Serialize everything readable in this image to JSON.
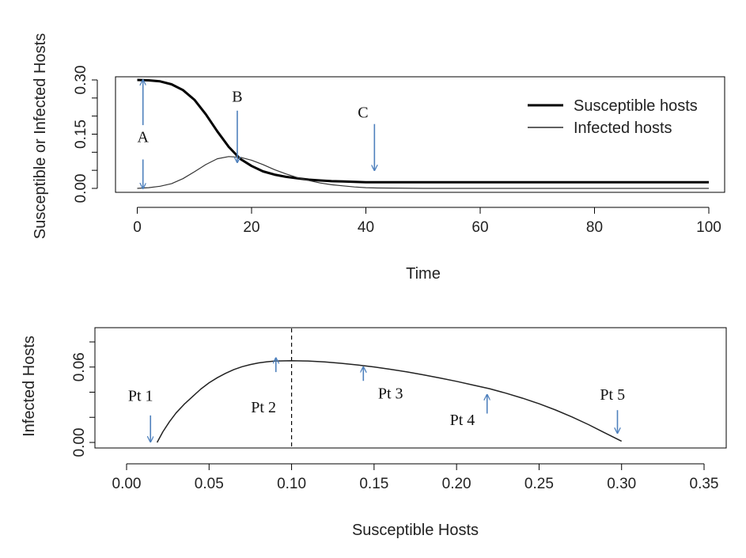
{
  "chart_data": [
    {
      "type": "line",
      "xlabel": "Time",
      "ylabel": "Susceptible or Infected Hosts",
      "xlim": [
        0,
        100
      ],
      "ylim": [
        0,
        0.3
      ],
      "xticks": [
        "0",
        "20",
        "40",
        "60",
        "80",
        "100"
      ],
      "yticks": [
        "0.00",
        "0.15",
        "0.30"
      ],
      "yticks_minor": [
        "0.05",
        "0.10",
        "0.20",
        "0.25"
      ],
      "legend": {
        "placement": "top-right",
        "entries": [
          "Susceptible hosts",
          "Infected hosts"
        ]
      },
      "series": [
        {
          "name": "Susceptible hosts",
          "line": "thick",
          "x": [
            0,
            2,
            4,
            6,
            8,
            10,
            12,
            14,
            16,
            18,
            20,
            22,
            24,
            26,
            28,
            30,
            32,
            34,
            36,
            40,
            50,
            60,
            70,
            80,
            90,
            100
          ],
          "y": [
            0.3,
            0.299,
            0.296,
            0.288,
            0.272,
            0.245,
            0.205,
            0.158,
            0.115,
            0.082,
            0.062,
            0.047,
            0.038,
            0.032,
            0.028,
            0.024,
            0.022,
            0.02,
            0.019,
            0.017,
            0.017,
            0.017,
            0.017,
            0.017,
            0.017,
            0.017
          ]
        },
        {
          "name": "Infected hosts",
          "line": "thin",
          "x": [
            0,
            2,
            4,
            6,
            8,
            10,
            12,
            14,
            16,
            18,
            20,
            22,
            24,
            26,
            28,
            30,
            32,
            34,
            36,
            38,
            40,
            42,
            50,
            60,
            70,
            80,
            90,
            100
          ],
          "y": [
            0.0,
            0.002,
            0.006,
            0.013,
            0.027,
            0.046,
            0.066,
            0.082,
            0.088,
            0.086,
            0.078,
            0.066,
            0.052,
            0.04,
            0.03,
            0.022,
            0.015,
            0.01,
            0.007,
            0.004,
            0.002,
            0.001,
            0.0,
            0.0,
            0.0,
            0.0,
            0.0,
            0.0
          ]
        }
      ],
      "annotations": [
        {
          "label": "A",
          "arrows": [
            {
              "x": 1,
              "from": 0.175,
              "to": 0.3
            },
            {
              "x": 1,
              "from": 0.08,
              "to": 0.0
            }
          ],
          "text_at": [
            1,
            0.128
          ]
        },
        {
          "label": "B",
          "arrows": [
            {
              "x": 17.5,
              "from": 0.215,
              "to": 0.072
            }
          ],
          "text_at": [
            17.5,
            0.24
          ]
        },
        {
          "label": "C",
          "arrows": [
            {
              "x": 41.5,
              "from": 0.178,
              "to": 0.05
            }
          ],
          "text_at": [
            39.5,
            0.196
          ]
        }
      ]
    },
    {
      "type": "line",
      "xlabel": "Susceptible Hosts",
      "ylabel": "Infected Hosts",
      "xlim": [
        -0.01,
        0.35
      ],
      "ylim": [
        0,
        0.08
      ],
      "xticks": [
        "0.00",
        "0.05",
        "0.10",
        "0.15",
        "0.20",
        "0.25",
        "0.30",
        "0.35"
      ],
      "yticks": [
        "0.00",
        "0.06"
      ],
      "yticks_minor": [
        "0.02",
        "0.04",
        "0.08"
      ],
      "vline": {
        "x": 0.1,
        "style": "dashed"
      },
      "series": [
        {
          "x": [
            0.0185,
            0.022,
            0.026,
            0.03,
            0.035,
            0.04,
            0.045,
            0.05,
            0.055,
            0.06,
            0.065,
            0.07,
            0.075,
            0.08,
            0.085,
            0.09,
            0.1,
            0.11,
            0.12,
            0.13,
            0.14,
            0.15,
            0.16,
            0.17,
            0.18,
            0.19,
            0.2,
            0.21,
            0.22,
            0.23,
            0.24,
            0.25,
            0.26,
            0.27,
            0.28,
            0.29,
            0.3
          ],
          "y": [
            0.0,
            0.0085,
            0.0165,
            0.0235,
            0.0305,
            0.0365,
            0.0425,
            0.0475,
            0.0515,
            0.055,
            0.058,
            0.0603,
            0.062,
            0.0633,
            0.0642,
            0.0648,
            0.065,
            0.0648,
            0.0641,
            0.063,
            0.0617,
            0.0601,
            0.0582,
            0.0561,
            0.0538,
            0.0513,
            0.0486,
            0.0457,
            0.0428,
            0.0392,
            0.0352,
            0.0308,
            0.0258,
            0.0203,
            0.0142,
            0.0075,
            0.001
          ]
        }
      ],
      "annotations": [
        {
          "label": "Pt 1",
          "arrow": {
            "x": 0.0145,
            "from": 0.0215,
            "to": 0.0005,
            "dir": "down"
          },
          "text_at": [
            0.0085,
            0.033
          ]
        },
        {
          "label": "Pt 2",
          "arrow": {
            "x": 0.0905,
            "from": 0.056,
            "to": 0.0672,
            "dir": "up"
          },
          "text_at": [
            0.083,
            0.024
          ]
        },
        {
          "label": "Pt 3",
          "arrow": {
            "x": 0.1435,
            "from": 0.049,
            "to": 0.06,
            "dir": "up"
          },
          "text_at": [
            0.16,
            0.035
          ]
        },
        {
          "label": "Pt 4",
          "arrow": {
            "x": 0.2185,
            "from": 0.023,
            "to": 0.038,
            "dir": "up"
          },
          "text_at": [
            0.2035,
            0.014
          ]
        },
        {
          "label": "Pt 5",
          "arrow": {
            "x": 0.2975,
            "from": 0.0257,
            "to": 0.0075,
            "dir": "down"
          },
          "text_at": [
            0.2945,
            0.034
          ]
        }
      ]
    }
  ]
}
